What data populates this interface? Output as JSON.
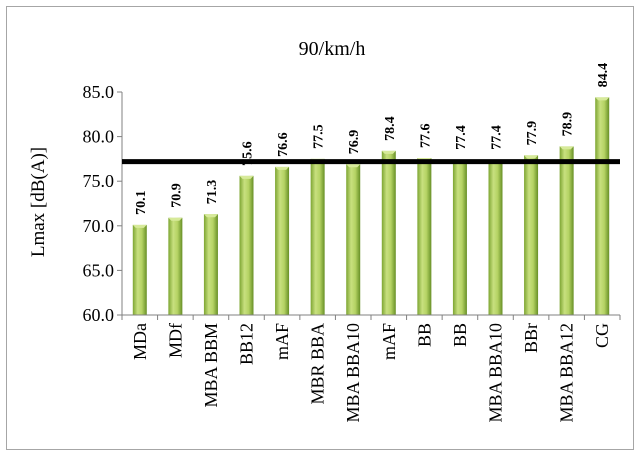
{
  "chart_data": {
    "type": "bar",
    "title": "90/km/h",
    "xlabel": "",
    "ylabel": "Lmax [dB(A)]",
    "ylim": [
      60.0,
      85.0
    ],
    "yticks": [
      "60.0",
      "65.0",
      "70.0",
      "75.0",
      "80.0",
      "85.0"
    ],
    "categories": [
      "MDa",
      "MDf",
      "MBA BBM",
      "BB12",
      "mAF",
      "MBR BBA",
      "MBA BBA10",
      "mAF",
      "BB",
      "BB",
      "MBA BBA10",
      "BBr",
      "MBA BBA12",
      "CG"
    ],
    "values": [
      70.1,
      70.9,
      71.3,
      75.6,
      76.6,
      77.5,
      76.9,
      78.4,
      77.6,
      77.4,
      77.4,
      77.9,
      78.9,
      84.4
    ],
    "data_labels": [
      "70.1",
      "70.9",
      "71.3",
      "75.6",
      "76.6",
      "77.5",
      "76.9",
      "78.4",
      "77.6",
      "77.4",
      "77.4",
      "77.9",
      "78.9",
      "84.4"
    ],
    "reference_line": 77.2,
    "grid": false,
    "legend": "none",
    "colors": {
      "bar_light": "#c3dd7a",
      "bar_dark": "#6f9a2a",
      "bar_top": "#d7ea9a",
      "reference_line": "#000000",
      "axis": "#808080"
    }
  }
}
